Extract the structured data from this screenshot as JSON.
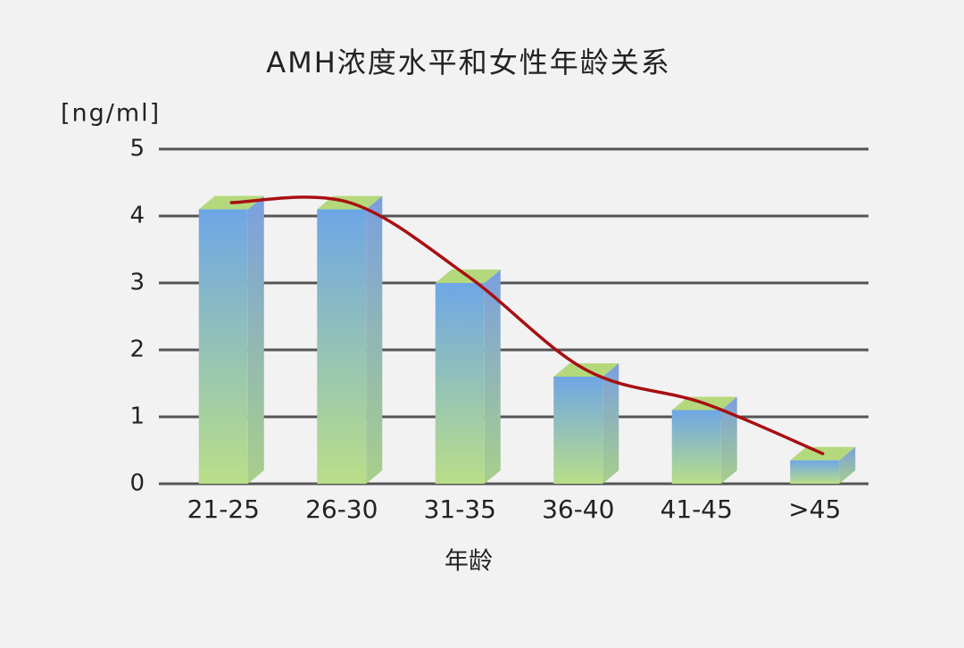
{
  "chart_data": {
    "type": "bar3d",
    "title": "AMH浓度水平和女性年龄关系",
    "y_unit": "[ng/ml]",
    "x_label": "年龄",
    "categories": [
      "21-25",
      "26-30",
      "31-35",
      "36-40",
      "41-45",
      ">45"
    ],
    "values": [
      4.1,
      4.1,
      3.0,
      1.6,
      1.1,
      0.35
    ],
    "ylim": [
      0,
      5
    ],
    "yticks": [
      0,
      1,
      2,
      3,
      4,
      5
    ],
    "grid": true,
    "trend_line": true,
    "trend_color": "#a80f12"
  }
}
